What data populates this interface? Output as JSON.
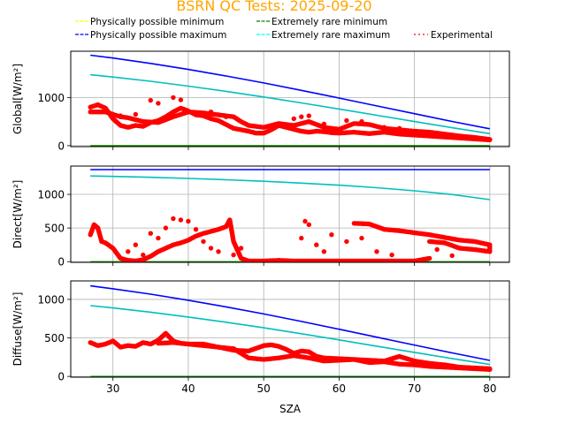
{
  "chart_data": {
    "type": "scatter",
    "title": "BSRN QC Tests: 2025-09-20",
    "title_color": "#FFA500",
    "xlabel": "SZA",
    "xlim": [
      24.4,
      82.6
    ],
    "xticks": [
      30,
      40,
      50,
      60,
      70,
      80
    ],
    "grid": true,
    "legend": {
      "placement": "top",
      "entries": [
        {
          "label": "Physically possible minimum",
          "color": "#FFFF00",
          "style": "dashed"
        },
        {
          "label": "Physically possible maximum",
          "color": "#0000FF",
          "style": "dashed"
        },
        {
          "label": "Extremely rare minimum",
          "color": "#008000",
          "style": "dashed"
        },
        {
          "label": "Extremely rare maximum",
          "color": "#00FFFF",
          "style": "dashed"
        },
        {
          "label": "Experimental",
          "color": "#FF0000",
          "style": "dotted"
        }
      ]
    },
    "line_colors": {
      "phys_min": "#FFFF00",
      "phys_max": "#0000FF",
      "rare_min": "#008000",
      "rare_max": "#00BFBF",
      "experimental": "#FF0000"
    },
    "limit_x": [
      27,
      30,
      35,
      40,
      45,
      50,
      55,
      60,
      65,
      70,
      75,
      80
    ],
    "panels": [
      {
        "ylabel": "Global[W/m²]",
        "ylim": [
          -20,
          1960
        ],
        "yticks": [
          0,
          1000
        ],
        "phys_min": [
          -4,
          -4,
          -4,
          -4,
          -4,
          -4,
          -4,
          -4,
          -4,
          -4,
          -4,
          -4
        ],
        "rare_min": [
          -2,
          -2,
          -2,
          -2,
          -2,
          -2,
          -2,
          -2,
          -2,
          -2,
          -2,
          -2
        ],
        "phys_max": [
          1878,
          1818,
          1707,
          1583,
          1447,
          1301,
          1148,
          989,
          826,
          663,
          503,
          350
        ],
        "rare_max": [
          1472,
          1424,
          1336,
          1236,
          1128,
          1011,
          888,
          761,
          631,
          501,
          373,
          250
        ],
        "experimental_traces": [
          [
            [
              27,
              800
            ],
            [
              28,
              850
            ],
            [
              29,
              780
            ],
            [
              30,
              560
            ],
            [
              31,
              420
            ],
            [
              32,
              380
            ],
            [
              33,
              420
            ],
            [
              34,
              400
            ],
            [
              35,
              480
            ],
            [
              36,
              520
            ],
            [
              37,
              600
            ],
            [
              38,
              700
            ],
            [
              39,
              780
            ],
            [
              40,
              720
            ],
            [
              41,
              640
            ],
            [
              42,
              620
            ],
            [
              43,
              560
            ],
            [
              44,
              520
            ],
            [
              45,
              440
            ],
            [
              46,
              360
            ],
            [
              47,
              330
            ],
            [
              48,
              300
            ],
            [
              49,
              260
            ],
            [
              50,
              260
            ],
            [
              51,
              330
            ],
            [
              52,
              420
            ],
            [
              53,
              380
            ],
            [
              54,
              340
            ],
            [
              55,
              300
            ],
            [
              56,
              280
            ],
            [
              57,
              300
            ],
            [
              58,
              290
            ],
            [
              59,
              270
            ],
            [
              60,
              260
            ],
            [
              62,
              280
            ],
            [
              64,
              250
            ],
            [
              66,
              280
            ],
            [
              68,
              240
            ],
            [
              70,
              220
            ],
            [
              72,
              200
            ],
            [
              74,
              180
            ],
            [
              76,
              160
            ],
            [
              78,
              140
            ],
            [
              80,
              120
            ]
          ],
          [
            [
              27,
              700
            ],
            [
              29,
              700
            ],
            [
              30,
              650
            ],
            [
              31,
              600
            ],
            [
              32,
              580
            ],
            [
              34,
              500
            ],
            [
              36,
              480
            ],
            [
              38,
              600
            ],
            [
              40,
              700
            ],
            [
              42,
              680
            ],
            [
              44,
              640
            ],
            [
              46,
              600
            ],
            [
              47,
              500
            ],
            [
              48,
              420
            ],
            [
              50,
              380
            ],
            [
              52,
              460
            ],
            [
              54,
              420
            ],
            [
              56,
              500
            ],
            [
              58,
              380
            ],
            [
              60,
              340
            ],
            [
              62,
              460
            ],
            [
              64,
              440
            ],
            [
              66,
              360
            ],
            [
              68,
              330
            ],
            [
              70,
              300
            ],
            [
              72,
              280
            ],
            [
              74,
              240
            ],
            [
              76,
              200
            ],
            [
              78,
              170
            ],
            [
              80,
              130
            ]
          ]
        ],
        "experimental_points": [
          [
            31,
            620
          ],
          [
            33,
            650
          ],
          [
            35,
            940
          ],
          [
            36,
            880
          ],
          [
            38,
            1000
          ],
          [
            39,
            950
          ],
          [
            43,
            700
          ],
          [
            45,
            600
          ],
          [
            54,
            560
          ],
          [
            55,
            600
          ],
          [
            56,
            620
          ],
          [
            58,
            450
          ],
          [
            61,
            520
          ],
          [
            63,
            500
          ],
          [
            66,
            380
          ],
          [
            68,
            360
          ]
        ]
      },
      {
        "ylabel": "Direct[W/m²]",
        "ylim": [
          -10,
          1420
        ],
        "yticks": [
          0,
          500,
          1000
        ],
        "phys_min": [
          -4,
          -4,
          -4,
          -4,
          -4,
          -4,
          -4,
          -4,
          -4,
          -4,
          -4,
          -4
        ],
        "rare_min": [
          -2,
          -2,
          -2,
          -2,
          -2,
          -2,
          -2,
          -2,
          -2,
          -2,
          -2,
          -2
        ],
        "phys_max": [
          1367,
          1367,
          1367,
          1367,
          1367,
          1367,
          1367,
          1367,
          1367,
          1367,
          1367,
          1367
        ],
        "rare_max": [
          1273,
          1266,
          1253,
          1236,
          1216,
          1194,
          1167,
          1136,
          1098,
          1053,
          997,
          921
        ],
        "experimental_traces": [
          [
            [
              27,
              400
            ],
            [
              27.5,
              550
            ],
            [
              28,
              500
            ],
            [
              28.5,
              300
            ],
            [
              29,
              280
            ],
            [
              30,
              200
            ],
            [
              31,
              50
            ],
            [
              32,
              20
            ],
            [
              33,
              10
            ],
            [
              34,
              30
            ],
            [
              35,
              80
            ],
            [
              36,
              150
            ],
            [
              37,
              200
            ],
            [
              38,
              250
            ],
            [
              39,
              280
            ],
            [
              40,
              320
            ],
            [
              41,
              380
            ],
            [
              42,
              420
            ],
            [
              43,
              450
            ],
            [
              44,
              480
            ],
            [
              45,
              520
            ],
            [
              45.5,
              620
            ],
            [
              46,
              300
            ],
            [
              47,
              50
            ],
            [
              48,
              10
            ],
            [
              50,
              10
            ],
            [
              52,
              20
            ],
            [
              54,
              10
            ],
            [
              56,
              10
            ],
            [
              58,
              10
            ],
            [
              60,
              10
            ],
            [
              62,
              10
            ],
            [
              64,
              10
            ],
            [
              66,
              10
            ],
            [
              68,
              10
            ],
            [
              70,
              10
            ],
            [
              72,
              50
            ]
          ],
          [
            [
              62,
              570
            ],
            [
              64,
              560
            ],
            [
              66,
              480
            ],
            [
              68,
              460
            ],
            [
              70,
              430
            ],
            [
              72,
              400
            ],
            [
              74,
              360
            ],
            [
              76,
              320
            ],
            [
              78,
              300
            ],
            [
              80,
              250
            ],
            [
              80,
              150
            ],
            [
              78,
              180
            ],
            [
              76,
              200
            ],
            [
              74,
              280
            ],
            [
              72,
              300
            ]
          ]
        ],
        "experimental_points": [
          [
            32,
            150
          ],
          [
            33,
            250
          ],
          [
            34,
            100
          ],
          [
            35,
            420
          ],
          [
            36,
            350
          ],
          [
            37,
            500
          ],
          [
            38,
            640
          ],
          [
            39,
            620
          ],
          [
            40,
            600
          ],
          [
            41,
            480
          ],
          [
            42,
            300
          ],
          [
            43,
            200
          ],
          [
            44,
            150
          ],
          [
            46,
            100
          ],
          [
            47,
            200
          ],
          [
            55,
            350
          ],
          [
            55.5,
            600
          ],
          [
            56,
            550
          ],
          [
            57,
            250
          ],
          [
            58,
            150
          ],
          [
            59,
            400
          ],
          [
            61,
            300
          ],
          [
            63,
            350
          ],
          [
            65,
            150
          ],
          [
            67,
            100
          ],
          [
            73,
            180
          ],
          [
            75,
            90
          ]
        ]
      },
      {
        "ylabel": "Diffuse[W/m²]",
        "ylim": [
          -10,
          1240
        ],
        "yticks": [
          0,
          500,
          1000
        ],
        "phys_min": [
          -4,
          -4,
          -4,
          -4,
          -4,
          -4,
          -4,
          -4,
          -4,
          -4,
          -4,
          -4
        ],
        "rare_min": [
          -2,
          -2,
          -2,
          -2,
          -2,
          -2,
          -2,
          -2,
          -2,
          -2,
          -2,
          -2
        ],
        "phys_max": [
          1176,
          1138,
          1068,
          989,
          903,
          811,
          714,
          613,
          510,
          407,
          305,
          208
        ],
        "rare_max": [
          919,
          889,
          834,
          771,
          703,
          631,
          554,
          474,
          393,
          312,
          232,
          155
        ],
        "experimental_traces": [
          [
            [
              27,
              440
            ],
            [
              28,
              400
            ],
            [
              29,
              420
            ],
            [
              30,
              460
            ],
            [
              31,
              380
            ],
            [
              32,
              400
            ],
            [
              33,
              390
            ],
            [
              34,
              440
            ],
            [
              35,
              420
            ],
            [
              36,
              470
            ],
            [
              37,
              560
            ],
            [
              38,
              460
            ],
            [
              39,
              430
            ],
            [
              40,
              420
            ],
            [
              42,
              400
            ],
            [
              44,
              380
            ],
            [
              46,
              340
            ],
            [
              48,
              330
            ],
            [
              50,
              400
            ],
            [
              51,
              410
            ],
            [
              52,
              390
            ],
            [
              53,
              350
            ],
            [
              54,
              300
            ],
            [
              55,
              330
            ],
            [
              56,
              320
            ],
            [
              57,
              260
            ],
            [
              58,
              240
            ],
            [
              60,
              230
            ],
            [
              62,
              220
            ],
            [
              64,
              210
            ],
            [
              66,
              200
            ],
            [
              68,
              260
            ],
            [
              70,
              200
            ],
            [
              72,
              170
            ],
            [
              74,
              150
            ],
            [
              76,
              120
            ],
            [
              78,
              110
            ],
            [
              80,
              100
            ]
          ],
          [
            [
              36,
              430
            ],
            [
              38,
              440
            ],
            [
              40,
              420
            ],
            [
              42,
              420
            ],
            [
              44,
              380
            ],
            [
              46,
              360
            ],
            [
              48,
              240
            ],
            [
              50,
              220
            ],
            [
              52,
              240
            ],
            [
              54,
              270
            ],
            [
              56,
              240
            ],
            [
              58,
              200
            ],
            [
              60,
              210
            ],
            [
              62,
              220
            ],
            [
              64,
              180
            ],
            [
              66,
              190
            ],
            [
              68,
              160
            ],
            [
              70,
              150
            ],
            [
              72,
              130
            ],
            [
              76,
              110
            ],
            [
              80,
              90
            ]
          ]
        ],
        "experimental_points": []
      }
    ]
  }
}
